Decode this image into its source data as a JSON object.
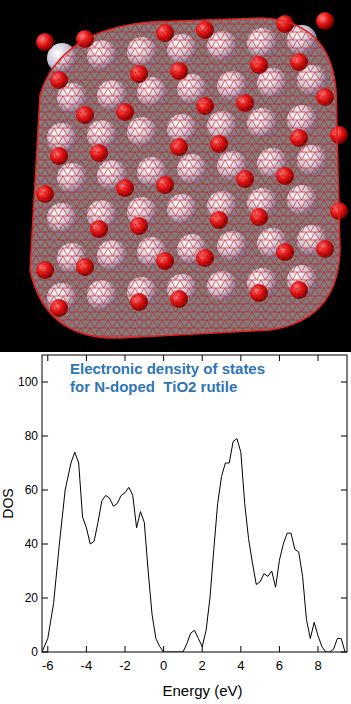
{
  "chart_data": {
    "type": "line",
    "title": [
      "Electronic density of states",
      "for N-doped  TiO2 rutile"
    ],
    "x_label": "Energy (eV)",
    "y_label": "DOS",
    "color": "#000000",
    "grid": false,
    "xlim": [
      -6.3,
      9.5
    ],
    "ylim": [
      0,
      110
    ],
    "xticks": [
      -6,
      -4,
      -2,
      0,
      2,
      4,
      6,
      8
    ],
    "yticks": [
      0,
      20,
      40,
      60,
      80,
      100
    ],
    "x": [
      -6.3,
      -6.0,
      -5.7,
      -5.4,
      -5.1,
      -4.8,
      -4.6,
      -4.4,
      -4.2,
      -4.0,
      -3.8,
      -3.6,
      -3.4,
      -3.2,
      -3.0,
      -2.8,
      -2.6,
      -2.4,
      -2.2,
      -2.0,
      -1.8,
      -1.6,
      -1.4,
      -1.2,
      -1.0,
      -0.8,
      -0.6,
      -0.4,
      -0.2,
      0.0,
      0.2,
      0.4,
      0.6,
      0.8,
      1.0,
      1.2,
      1.4,
      1.6,
      1.8,
      2.0,
      2.2,
      2.4,
      2.6,
      2.8,
      3.0,
      3.2,
      3.4,
      3.6,
      3.8,
      4.0,
      4.2,
      4.4,
      4.6,
      4.8,
      5.0,
      5.2,
      5.4,
      5.6,
      5.8,
      6.0,
      6.2,
      6.4,
      6.6,
      6.8,
      7.0,
      7.2,
      7.4,
      7.6,
      7.8,
      8.0,
      8.2,
      8.4,
      8.6,
      8.8,
      9.0,
      9.2,
      9.4
    ],
    "values": [
      0,
      5,
      18,
      40,
      60,
      70,
      74,
      70,
      50,
      46,
      40,
      41,
      48,
      56,
      58,
      57,
      54,
      55,
      58,
      59,
      61,
      58,
      46,
      52,
      48,
      30,
      14,
      5,
      2,
      0,
      0,
      0,
      0,
      0,
      0,
      3,
      7,
      8,
      5,
      2,
      8,
      20,
      38,
      55,
      65,
      70,
      70,
      78,
      79,
      74,
      55,
      42,
      33,
      25,
      26,
      29,
      28,
      30,
      24,
      34,
      40,
      44,
      44,
      38,
      37,
      28,
      12,
      5,
      11,
      6,
      2,
      0,
      0,
      1,
      5,
      5,
      0
    ]
  }
}
